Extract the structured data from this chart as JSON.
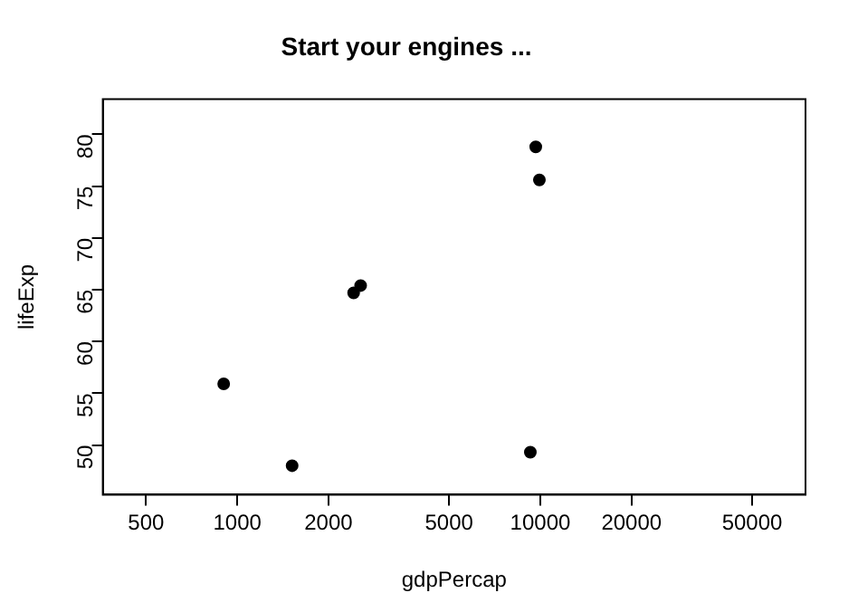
{
  "chart_data": {
    "type": "scatter",
    "title": "Start your engines ...",
    "xlabel": "gdpPercap",
    "ylabel": "lifeExp",
    "x": [
      902,
      1517,
      2421,
      2553,
      9660,
      9930,
      9270
    ],
    "values": [
      55.9,
      48.0,
      64.7,
      65.4,
      78.8,
      75.6,
      49.3
    ],
    "color": "#000000",
    "marker": "circle",
    "log": "x",
    "grid": false,
    "legend": false,
    "xlim": [
      360,
      75000
    ],
    "xticks": [
      500,
      1000,
      2000,
      5000,
      10000,
      20000,
      50000
    ],
    "ylim": [
      45.2,
      83.4
    ],
    "yticks": [
      50,
      55,
      60,
      65,
      70,
      75,
      80
    ]
  }
}
